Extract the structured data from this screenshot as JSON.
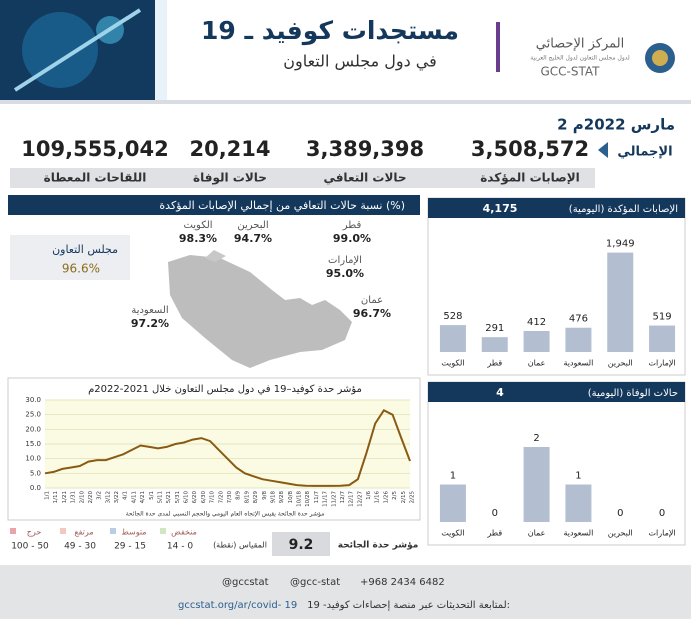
{
  "header": {
    "title": "مستجدات كوفيد ـ 19",
    "subtitle": "في دول مجلس التعاون",
    "org_name": "المركز الإحصائي",
    "org_subname": "لدول مجلس التعاون لدول الخليج العربية",
    "org_code": "GCC-STAT"
  },
  "date": "2 مارس 2022م",
  "totals": {
    "label": "الإجمالي",
    "items": [
      {
        "value": "3,508,572",
        "label": "الإصابات المؤكدة"
      },
      {
        "value": "3,389,398",
        "label": "حالات التعافي"
      },
      {
        "value": "20,214",
        "label": "حالات الوفاة"
      },
      {
        "value": "109,555,042",
        "label": "اللقاحات المعطاة"
      }
    ]
  },
  "recovery_map": {
    "title": "نسبة حالات التعافي من إجمالي الإصابات المؤكدة (%)",
    "gcc": {
      "name": "مجلس التعاون",
      "value": "96.6%"
    },
    "regions": [
      {
        "name": "الكويت",
        "value": "98.3%"
      },
      {
        "name": "البحرين",
        "value": "94.7%"
      },
      {
        "name": "قطر",
        "value": "99.0%"
      },
      {
        "name": "الإمارات",
        "value": "95.0%"
      },
      {
        "name": "عمان",
        "value": "96.7%"
      },
      {
        "name": "السعودية",
        "value": "97.2%"
      }
    ]
  },
  "chart_data": [
    {
      "type": "bar",
      "title": "الإصابات المؤكدة (اليومية)",
      "total": "4,175",
      "categories": [
        "الكويت",
        "قطر",
        "عمان",
        "السعودية",
        "البحرين",
        "الإمارات"
      ],
      "values": [
        528,
        291,
        412,
        476,
        1949,
        519
      ],
      "value_labels": [
        "528",
        "291",
        "412",
        "476",
        "1,949",
        "519"
      ],
      "color": "#b3bfd1",
      "ylim": [
        0,
        2000
      ]
    },
    {
      "type": "bar",
      "title": "حالات الوفاة (اليومية)",
      "total": "4",
      "categories": [
        "الكويت",
        "قطر",
        "عمان",
        "السعودية",
        "البحرين",
        "الإمارات"
      ],
      "values": [
        1,
        0,
        2,
        1,
        0,
        0
      ],
      "color": "#b3bfd1",
      "ylim": [
        0,
        2.4
      ]
    },
    {
      "type": "line",
      "title": "مؤشر حدة كوفيد–19 في دول مجلس التعاون خلال 2021-2022م",
      "x": [
        "1/1",
        "1/11",
        "1/21",
        "1/31",
        "2/10",
        "2/20",
        "3/2",
        "3/12",
        "3/22",
        "4/1",
        "4/11",
        "4/21",
        "5/1",
        "5/11",
        "5/21",
        "5/31",
        "6/10",
        "6/20",
        "6/30",
        "7/10",
        "7/20",
        "7/30",
        "8/9",
        "8/19",
        "8/29",
        "9/8",
        "9/18",
        "9/28",
        "10/8",
        "10/18",
        "10/28",
        "11/7",
        "11/17",
        "11/27",
        "12/7",
        "12/17",
        "12/27",
        "1/6",
        "1/16",
        "1/26",
        "2/5",
        "2/15",
        "2/25"
      ],
      "values": [
        5,
        5.5,
        6.5,
        7,
        7.5,
        9,
        9.5,
        9.5,
        10.5,
        11.5,
        13,
        14.5,
        14,
        13.5,
        14,
        15,
        15.5,
        16.5,
        17,
        16,
        13,
        10,
        7,
        5,
        4,
        3,
        2.5,
        2,
        1.5,
        1,
        0.8,
        0.7,
        0.7,
        0.7,
        0.8,
        1,
        3,
        12,
        22,
        26.5,
        25,
        17,
        9.2
      ],
      "color": "#8a5a14",
      "ylim": [
        0,
        30
      ],
      "yticks": [
        {
          "value": 0,
          "label": "0.0"
        },
        {
          "value": 5,
          "label": "5.0"
        },
        {
          "value": 10,
          "label": "10.0"
        },
        {
          "value": 15,
          "label": "15.0"
        },
        {
          "value": 20,
          "label": "20.0"
        },
        {
          "value": 25,
          "label": "25.0"
        },
        {
          "value": 30,
          "label": "30.0"
        }
      ],
      "grid": true,
      "note": "مؤشر حدة الجائحة يقيس الإتجاه العام اليومي والحجم النسبي لمدى حدة الجائحة",
      "severity_levels": [
        {
          "name": "حرج",
          "range": "100 - 50",
          "color": "#e9a3aa"
        },
        {
          "name": "مرتفع",
          "range": "49 - 30",
          "color": "#f2c9c0"
        },
        {
          "name": "متوسط",
          "range": "29 - 15",
          "color": "#b9cde6"
        },
        {
          "name": "منخفض",
          "range": "14 - 0",
          "color": "#cfe6c0"
        }
      ],
      "scale_label": "المقياس (نقطة)",
      "current_value": "9.2",
      "current_label": "مؤشر حدة الجائحة"
    }
  ],
  "footer": {
    "handle1": "@gccstat",
    "phone": "+968 2434 6482",
    "handle2": "@gcc-stat",
    "follow_text": "لمتابعة التحديثات عبر منصة إحصاءات كوفيد- 19:",
    "url": "gccstat.org/ar/covid- 19"
  }
}
